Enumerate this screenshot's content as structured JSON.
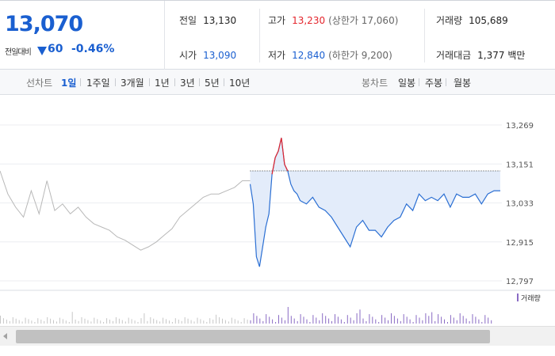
{
  "quote": {
    "price": "13,070",
    "change_label": "전일대비",
    "change_value": "60",
    "change_pct": "-0.46%",
    "color_down": "#1a5fd0",
    "color_up": "#e4252c"
  },
  "stats": {
    "prev_close": {
      "label": "전일",
      "value": "13,130"
    },
    "high": {
      "label": "고가",
      "value": "13,230",
      "sub": "(상한가 17,060)"
    },
    "volume": {
      "label": "거래량",
      "value": "105,689"
    },
    "open": {
      "label": "시가",
      "value": "13,090"
    },
    "low": {
      "label": "저가",
      "value": "12,840",
      "sub": "(하한가 9,200)"
    },
    "amount": {
      "label": "거래대금",
      "value": "1,377 백만"
    }
  },
  "toolbar": {
    "line_label": "선차트",
    "line_periods": [
      "1일",
      "1주일",
      "3개월",
      "1년",
      "3년",
      "5년",
      "10년"
    ],
    "active_period": "1일",
    "candle_label": "봉차트",
    "candle_periods": [
      "일봉",
      "주봉",
      "월봉"
    ]
  },
  "chart_data": {
    "type": "line",
    "y_ticks": [
      "13,269",
      "13,151",
      "13,033",
      "12,915",
      "12,797"
    ],
    "ylim": [
      12797,
      13269
    ],
    "reference_line": 13130,
    "volume_legend": "거래량",
    "series": [
      {
        "x": [
          0,
          5,
          10,
          15,
          20,
          25,
          30,
          35,
          40,
          45,
          50,
          55,
          60,
          65,
          70,
          75,
          80,
          85,
          90,
          95,
          100,
          105,
          110,
          115,
          120,
          125,
          130,
          135,
          140,
          145,
          150,
          155,
          160
        ],
        "values": [
          13130,
          13060,
          13020,
          12990,
          13070,
          13000,
          13100,
          13010,
          13030,
          13000,
          13020,
          12990,
          12970,
          12960,
          12950,
          12930,
          12920,
          12905,
          12890,
          12900,
          12915,
          12935,
          12955,
          12990,
          13010,
          13030,
          13050,
          13060,
          13060,
          13070,
          13080,
          13100,
          13100
        ]
      },
      {
        "x": [
          160,
          162,
          164,
          166,
          168,
          170,
          172,
          174,
          176,
          178,
          180,
          182,
          184,
          186,
          188,
          190,
          192,
          196,
          200,
          204,
          208,
          212,
          216,
          220,
          224,
          228,
          232,
          236,
          240,
          244,
          248,
          252,
          256,
          260,
          264,
          268,
          272,
          276,
          280,
          284,
          288,
          292,
          296,
          300,
          304,
          308,
          312,
          316,
          320
        ],
        "values": [
          13090,
          13030,
          12870,
          12840,
          12900,
          12960,
          13000,
          13120,
          13170,
          13190,
          13230,
          13150,
          13130,
          13090,
          13070,
          13060,
          13040,
          13030,
          13050,
          13020,
          13010,
          12990,
          12960,
          12930,
          12900,
          12960,
          12980,
          12950,
          12950,
          12930,
          12960,
          12980,
          12990,
          13030,
          13010,
          13060,
          13040,
          13050,
          13040,
          13060,
          13020,
          13060,
          13050,
          13050,
          13060,
          13030,
          13060,
          13070,
          13070
        ]
      }
    ]
  }
}
